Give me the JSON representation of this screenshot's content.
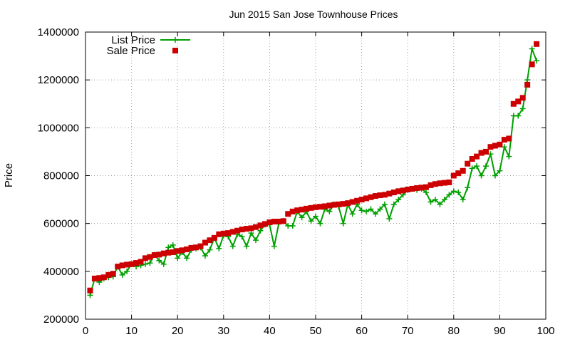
{
  "chart_data": {
    "type": "line",
    "title": "Jun 2015 San Jose Townhouse Prices",
    "xlabel": "",
    "ylabel": "Price",
    "xlim": [
      0,
      100
    ],
    "ylim": [
      200000,
      1400000
    ],
    "xticks": [
      0,
      10,
      20,
      30,
      40,
      50,
      60,
      70,
      80,
      90,
      100
    ],
    "yticks": [
      200000,
      400000,
      600000,
      800000,
      1000000,
      1200000,
      1400000
    ],
    "grid": true,
    "legend_position": "top-left",
    "series": [
      {
        "name": "List Price",
        "style": "line+plus-markers",
        "color": "#00a000",
        "x": [
          1,
          2,
          3,
          4,
          5,
          6,
          7,
          8,
          9,
          10,
          11,
          12,
          13,
          14,
          15,
          16,
          17,
          18,
          19,
          20,
          21,
          22,
          23,
          24,
          25,
          26,
          27,
          28,
          29,
          30,
          31,
          32,
          33,
          34,
          35,
          36,
          37,
          38,
          39,
          40,
          41,
          42,
          43,
          44,
          45,
          46,
          47,
          48,
          49,
          50,
          51,
          52,
          53,
          54,
          55,
          56,
          57,
          58,
          59,
          60,
          61,
          62,
          63,
          64,
          65,
          66,
          67,
          68,
          69,
          70,
          71,
          72,
          73,
          74,
          75,
          76,
          77,
          78,
          79,
          80,
          81,
          82,
          83,
          84,
          85,
          86,
          87,
          88,
          89,
          90,
          91,
          92,
          93,
          94,
          95,
          96,
          97,
          98
        ],
        "y": [
          300000,
          370000,
          355000,
          370000,
          375000,
          378000,
          420000,
          385000,
          400000,
          430000,
          420000,
          425000,
          430000,
          435000,
          470000,
          445000,
          430000,
          500000,
          510000,
          455000,
          480000,
          455000,
          490000,
          495000,
          500000,
          465000,
          490000,
          540000,
          495000,
          550000,
          545000,
          505000,
          555000,
          545000,
          505000,
          560000,
          530000,
          570000,
          595000,
          595000,
          505000,
          600000,
          610000,
          590000,
          590000,
          650000,
          625000,
          650000,
          610000,
          630000,
          600000,
          660000,
          650000,
          680000,
          670000,
          600000,
          680000,
          640000,
          680000,
          655000,
          650000,
          660000,
          640000,
          660000,
          680000,
          620000,
          680000,
          700000,
          720000,
          740000,
          745000,
          740000,
          745000,
          730000,
          690000,
          700000,
          680000,
          700000,
          720000,
          735000,
          730000,
          700000,
          750000,
          830000,
          840000,
          800000,
          840000,
          890000,
          800000,
          820000,
          920000,
          880000,
          1050000,
          1050000,
          1080000,
          1200000,
          1330000,
          1280000
        ]
      },
      {
        "name": "Sale Price",
        "style": "square-markers",
        "color": "#cc0000",
        "x": [
          1,
          2,
          3,
          4,
          5,
          6,
          7,
          8,
          9,
          10,
          11,
          12,
          13,
          14,
          15,
          16,
          17,
          18,
          19,
          20,
          21,
          22,
          23,
          24,
          25,
          26,
          27,
          28,
          29,
          30,
          31,
          32,
          33,
          34,
          35,
          36,
          37,
          38,
          39,
          40,
          41,
          42,
          43,
          44,
          45,
          46,
          47,
          48,
          49,
          50,
          51,
          52,
          53,
          54,
          55,
          56,
          57,
          58,
          59,
          60,
          61,
          62,
          63,
          64,
          65,
          66,
          67,
          68,
          69,
          70,
          71,
          72,
          73,
          74,
          75,
          76,
          77,
          78,
          79,
          80,
          81,
          82,
          83,
          84,
          85,
          86,
          87,
          88,
          89,
          90,
          91,
          92,
          93,
          94,
          95,
          96,
          97,
          98
        ],
        "y": [
          320000,
          370000,
          372000,
          375000,
          385000,
          390000,
          420000,
          425000,
          428000,
          430000,
          435000,
          440000,
          455000,
          460000,
          468000,
          470000,
          475000,
          478000,
          480000,
          485000,
          488000,
          492000,
          498000,
          500000,
          505000,
          520000,
          530000,
          540000,
          555000,
          558000,
          560000,
          565000,
          570000,
          575000,
          578000,
          580000,
          585000,
          592000,
          598000,
          605000,
          608000,
          608000,
          610000,
          640000,
          650000,
          655000,
          658000,
          662000,
          665000,
          668000,
          670000,
          672000,
          675000,
          678000,
          680000,
          682000,
          685000,
          690000,
          695000,
          700000,
          705000,
          710000,
          715000,
          718000,
          720000,
          725000,
          730000,
          735000,
          738000,
          742000,
          745000,
          748000,
          750000,
          752000,
          760000,
          765000,
          768000,
          770000,
          772000,
          800000,
          810000,
          820000,
          850000,
          870000,
          880000,
          895000,
          900000,
          920000,
          925000,
          930000,
          950000,
          955000,
          1100000,
          1110000,
          1125000,
          1180000,
          1265000,
          1350000
        ]
      }
    ]
  }
}
